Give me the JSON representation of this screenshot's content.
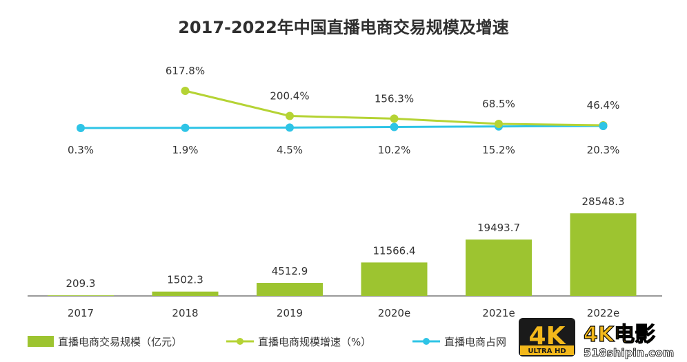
{
  "chart_data": {
    "type": "bar+line",
    "title": "2017-2022年中国直播电商交易规模及增速",
    "categories": [
      "2017",
      "2018",
      "2019",
      "2020e",
      "2021e",
      "2022e"
    ],
    "series": [
      {
        "name": "直播电商交易规模（亿元）",
        "type": "bar",
        "color": "#9dc430",
        "values": [
          209.3,
          1502.3,
          4512.9,
          11566.4,
          19493.7,
          28548.3
        ],
        "labels": [
          "209.3",
          "1502.3",
          "4512.9",
          "11566.4",
          "19493.7",
          "28548.3"
        ]
      },
      {
        "name": "直播电商规模增速（%）",
        "type": "line",
        "color": "#b5d334",
        "values": [
          null,
          617.8,
          200.4,
          156.3,
          68.5,
          46.4
        ],
        "labels": [
          "",
          "617.8%",
          "200.4%",
          "156.3%",
          "68.5%",
          "46.4%"
        ]
      },
      {
        "name": "直播电商占网",
        "type": "line",
        "color": "#2ec4e6",
        "values": [
          0.3,
          1.9,
          4.5,
          10.2,
          15.2,
          20.3
        ],
        "labels": [
          "0.3%",
          "1.9%",
          "4.5%",
          "10.2%",
          "15.2%",
          "20.3%"
        ]
      }
    ]
  },
  "watermark": {
    "logo_main": "4K",
    "logo_sub": "ULTRA HD",
    "brand": "4K电影",
    "url": "518shipin.com"
  }
}
